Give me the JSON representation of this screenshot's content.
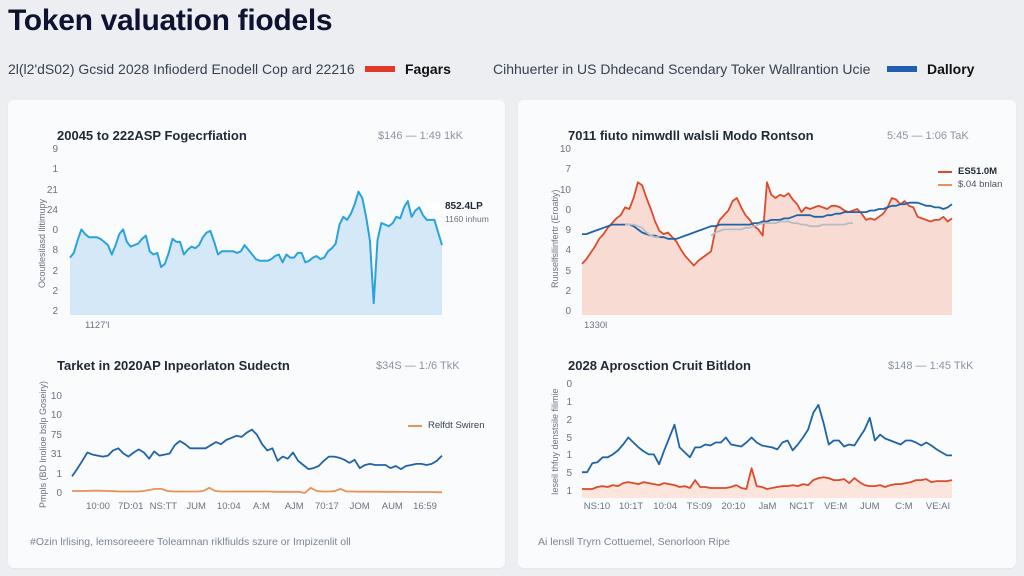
{
  "header": {
    "title": "Token valuation fiodels",
    "subtitle_left": "2l(l2'dS02) Gcsid 2028 Infioderd Enodell Cop ard 22216",
    "legend_left": {
      "label": "Fagars",
      "color": "#e0392b"
    },
    "subtitle_right": "Cihhuerter in US Dhdecand Scendary Toker Wallrantion Ucie",
    "legend_right": {
      "label": "Dallory",
      "color": "#1f5fae"
    }
  },
  "colors": {
    "light_blue": "#2aa3dc",
    "light_blue_fill": "#cfe6f6",
    "red": "#dd4b2a",
    "red_fill": "#f8d5c9",
    "blue": "#1f64a8",
    "grey": "#b8bcc3",
    "orange": "#e8925a",
    "orange_fill": "#fbe0d4"
  },
  "panels": {
    "left_footnote": "#Ozin lrlising, lemsoreeere Toleamnan riklfiulds szure or Impizenlit oll",
    "right_footnote": "Ai lensll Tryrn Cottuemel, Senorloon Ripe"
  },
  "chart_data": [
    {
      "id": "top-left",
      "type": "area",
      "title": "20045 to 222ASP Fogecrfiation",
      "range_label": "$146 — 1:49 1kK",
      "ylabel": "Ocoutlesilasd llitimupy",
      "yticks": [
        "9",
        "1",
        "21",
        "24",
        "0",
        "8",
        "2",
        "2",
        "2"
      ],
      "xticks": [
        "1127'l"
      ],
      "annotation": {
        "value": "852.4LP",
        "sub": "1160 inhum"
      },
      "ylim": [
        0,
        100
      ],
      "series": [
        {
          "name": "ASP",
          "color": "#2aa3dc",
          "fill": "#cfe6f6",
          "values": [
            34,
            37,
            45,
            52,
            49,
            47,
            47,
            47,
            46,
            44,
            42,
            36,
            42,
            49,
            52,
            44,
            41,
            42,
            43,
            46,
            48,
            38,
            36,
            37,
            28,
            30,
            37,
            46,
            44,
            44,
            36,
            39,
            41,
            40,
            42,
            47,
            50,
            51,
            44,
            36,
            38,
            38,
            38,
            38,
            37,
            38,
            42,
            39,
            36,
            33,
            32,
            32,
            32,
            33,
            35,
            36,
            31,
            36,
            34,
            34,
            37,
            37,
            31,
            32,
            34,
            35,
            33,
            34,
            38,
            40,
            43,
            55,
            60,
            58,
            62,
            68,
            76,
            72,
            60,
            45,
            5,
            45,
            56,
            55,
            54,
            56,
            60,
            59,
            66,
            70,
            60,
            64,
            66,
            61,
            58,
            58,
            58,
            50,
            42
          ]
        }
      ]
    },
    {
      "id": "top-right",
      "type": "area",
      "title": "7011 fiuto nimwdll walsli Modo Rontson",
      "range_label": "5:45 — 1:06 TaK",
      "ylabel": "Ruuselfsllinfertr (Eroatiy)",
      "yticks": [
        "10",
        "7",
        "10",
        "0",
        "9",
        "4",
        "5",
        "2",
        "0"
      ],
      "xticks": [
        "1330l"
      ],
      "legend": [
        {
          "label": "ES51.0M",
          "color": "#dd4b2a"
        },
        {
          "label": "$.04 bnlan",
          "color": "#e8925a"
        }
      ],
      "ylim": [
        0,
        100
      ],
      "series": [
        {
          "name": "ES51.0M",
          "color": "#dd4b2a",
          "fill": "#f8d5c9",
          "values": [
            30,
            33,
            37,
            41,
            46,
            49,
            53,
            56,
            59,
            61,
            66,
            65,
            72,
            82,
            80,
            72,
            65,
            57,
            51,
            49,
            50,
            47,
            44,
            39,
            35,
            32,
            29,
            32,
            34,
            36,
            38,
            52,
            58,
            61,
            64,
            70,
            72,
            66,
            61,
            58,
            54,
            52,
            48,
            82,
            74,
            72,
            74,
            73,
            75,
            71,
            68,
            63,
            66,
            65,
            66,
            67,
            66,
            65,
            67,
            67,
            66,
            64,
            63,
            64,
            65,
            62,
            58,
            59,
            58,
            60,
            62,
            66,
            72,
            71,
            68,
            70,
            67,
            66,
            60,
            59,
            58,
            57,
            58,
            58,
            60,
            57,
            59
          ]
        },
        {
          "name": "Dallory",
          "color": "#1f64a8",
          "values": [
            49,
            49,
            50,
            51,
            52,
            53,
            54,
            55,
            55,
            55,
            55,
            55,
            54,
            52,
            50,
            49,
            48,
            48,
            47,
            47,
            46,
            46,
            46,
            47,
            48,
            49,
            50,
            51,
            52,
            53,
            54,
            54,
            55,
            55,
            55,
            55,
            55,
            55,
            55,
            55,
            56,
            56,
            57,
            57,
            58,
            58,
            58,
            59,
            59,
            60,
            61,
            61,
            61,
            61,
            60,
            60,
            60,
            61,
            61,
            62,
            62,
            63,
            63,
            63,
            63,
            63,
            63,
            64,
            64,
            65,
            65,
            66,
            67,
            67,
            68,
            68,
            69,
            69,
            69,
            68,
            67,
            67,
            66,
            66,
            65,
            66,
            68
          ]
        },
        {
          "name": "$.04 bnlan",
          "color": "#b8bcc3",
          "values": [
            null,
            null,
            null,
            null,
            null,
            null,
            null,
            null,
            null,
            null,
            55,
            55,
            55,
            54,
            53,
            50,
            48,
            47,
            47,
            null,
            null,
            null,
            null,
            null,
            null,
            null,
            null,
            null,
            null,
            null,
            48,
            50,
            51,
            52,
            52,
            52,
            52,
            52,
            53,
            53,
            54,
            55,
            56,
            56,
            56,
            56,
            57,
            57,
            57,
            56,
            56,
            55,
            55,
            54,
            54,
            54,
            55,
            55,
            55,
            55,
            55,
            55,
            56,
            56,
            null,
            null,
            null,
            null,
            null,
            null,
            null,
            null,
            null,
            null,
            null,
            null,
            null,
            null,
            null,
            null,
            null,
            null,
            null,
            null,
            null,
            null,
            null
          ]
        }
      ]
    },
    {
      "id": "bottom-left",
      "type": "line",
      "title": "Tarket in 2020AP Inpeorlaton Sudectn",
      "range_label": "$34S — 1:/6 TkK",
      "ylabel": "Pmpls (BD lnolioe bslp Goseiry)",
      "yticks": [
        "10",
        "10",
        "75",
        "31",
        "1",
        "0"
      ],
      "xticks": [
        "10:00",
        "7D:01",
        "NS:TT",
        "JUM",
        "10:04",
        "A:M",
        "AJM",
        "70:17",
        "JOM",
        "AUM",
        "16:59"
      ],
      "legend": [
        {
          "label": "Relfdt Swiren",
          "color": "#e8925a"
        }
      ],
      "ylim": [
        0,
        100
      ],
      "series": [
        {
          "name": "Dallory",
          "color": "#1f64a8",
          "values": [
            15,
            22,
            30,
            38,
            36,
            35,
            34,
            35,
            40,
            42,
            37,
            34,
            38,
            41,
            38,
            32,
            39,
            35,
            36,
            37,
            45,
            49,
            46,
            42,
            42,
            42,
            42,
            45,
            48,
            46,
            50,
            52,
            54,
            53,
            57,
            60,
            55,
            46,
            40,
            42,
            30,
            34,
            32,
            38,
            30,
            26,
            22,
            23,
            25,
            30,
            34,
            34,
            33,
            31,
            28,
            31,
            23,
            26,
            27,
            26,
            26,
            26,
            23,
            25,
            22,
            25,
            26,
            27,
            27,
            26,
            27,
            30,
            35
          ]
        },
        {
          "name": "Relfdt Swiren",
          "color": "#e8925a",
          "values": [
            1,
            1,
            1,
            1.2,
            1.3,
            1.2,
            1,
            0.8,
            0.5,
            0.5,
            0.5,
            0.5,
            1,
            2,
            3,
            3,
            1,
            0.5,
            0.5,
            0.5,
            0.5,
            0.5,
            1,
            4,
            1,
            0.5,
            0.5,
            0.5,
            0.5,
            0.5,
            0.5,
            0.5,
            0.5,
            0.5,
            0.2,
            0.2,
            0.2,
            0.2,
            0.2,
            -1,
            4,
            1,
            0.5,
            0.5,
            0.8,
            3,
            0.5,
            0.5,
            0.3,
            0.3,
            0.3,
            0.3,
            0.2,
            0.2,
            0.2,
            0.1,
            0.1,
            0,
            0,
            0,
            0,
            -0.2,
            -0.3
          ]
        }
      ]
    },
    {
      "id": "bottom-right",
      "type": "line",
      "title": "2028 Aprosction Cruit Bitldon",
      "range_label": "$148 — 1:45 TkK",
      "ylabel": "Ieseil thfuy denstsile filimie",
      "yticks": [
        "0",
        "1",
        "2",
        "5",
        "1",
        "5",
        "1"
      ],
      "xticks": [
        "NS:10",
        "10:1T",
        "10:04",
        "TS:09",
        "20:10",
        "JaM",
        "NC1T",
        "VE:M",
        "JUM",
        "C:M",
        "VE:AI"
      ],
      "ylim": [
        0,
        100
      ],
      "series": [
        {
          "name": "Dallory",
          "color": "#1f64a8",
          "values": [
            20,
            20,
            29,
            30,
            35,
            35,
            38,
            42,
            48,
            55,
            50,
            45,
            41,
            38,
            38,
            28,
            42,
            55,
            68,
            45,
            40,
            35,
            45,
            45,
            48,
            47,
            50,
            50,
            55,
            48,
            47,
            46,
            50,
            55,
            50,
            47,
            46,
            45,
            43,
            50,
            52,
            42,
            48,
            55,
            63,
            80,
            88,
            70,
            48,
            52,
            52,
            46,
            48,
            47,
            55,
            63,
            75,
            52,
            58,
            54,
            52,
            50,
            48,
            52,
            52,
            50,
            47,
            50,
            47,
            43,
            40,
            37,
            37
          ]
        },
        {
          "name": "Fagars",
          "color": "#dd4b2a",
          "fill": "#fbe0d4",
          "values": [
            3,
            3,
            3,
            5,
            6,
            5,
            7,
            6,
            9,
            10,
            9,
            8,
            10,
            9,
            8,
            7,
            9,
            8,
            7,
            5,
            6,
            4,
            12,
            5,
            5,
            4,
            4,
            4,
            4,
            5,
            7,
            4,
            3,
            24,
            6,
            5,
            3,
            4,
            5,
            6,
            6,
            7,
            6,
            8,
            7,
            12,
            14,
            15,
            14,
            12,
            12,
            13,
            9,
            14,
            10,
            7,
            6,
            6,
            7,
            5,
            7,
            8,
            8,
            9,
            10,
            12,
            12,
            13,
            10,
            11,
            11,
            11,
            12
          ]
        }
      ]
    }
  ]
}
